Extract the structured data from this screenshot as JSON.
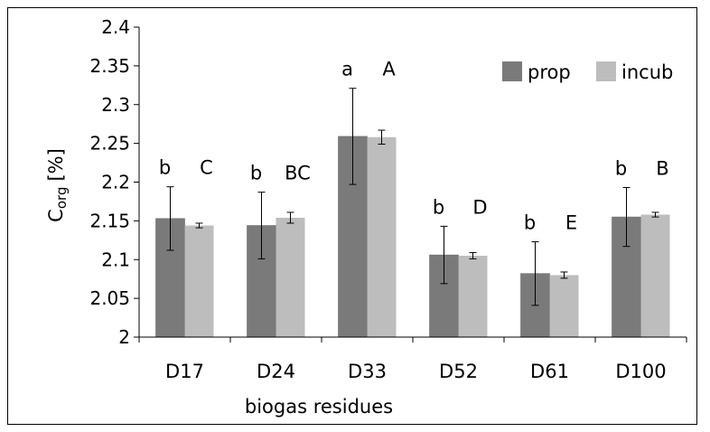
{
  "chart_data": {
    "type": "bar",
    "xlabel": "biogas residues",
    "ylabel": {
      "main": "C",
      "subscript": "org",
      "unit": "[%]"
    },
    "ylim": [
      2,
      2.4
    ],
    "yticks": [
      "2",
      "2.05",
      "2.1",
      "2.15",
      "2.2",
      "2.25",
      "2.3",
      "2.35",
      "2.4"
    ],
    "grid": false,
    "legend_position": "top-right",
    "categories": [
      "D17",
      "D24",
      "D33",
      "D52",
      "D61",
      "D100"
    ],
    "series": [
      {
        "name": "prop",
        "color": "#7a7a7a",
        "values": [
          2.153,
          2.144,
          2.259,
          2.106,
          2.082,
          2.155
        ],
        "errors": [
          0.041,
          0.043,
          0.062,
          0.037,
          0.041,
          0.038
        ],
        "letters": [
          "b",
          "b",
          "a",
          "b",
          "b",
          "b"
        ]
      },
      {
        "name": "incub",
        "color": "#bdbdbd",
        "values": [
          2.144,
          2.154,
          2.258,
          2.105,
          2.08,
          2.158
        ],
        "errors": [
          0.003,
          0.007,
          0.009,
          0.004,
          0.004,
          0.003
        ],
        "letters": [
          "C",
          "BC",
          "A",
          "D",
          "E",
          "B"
        ]
      }
    ]
  }
}
